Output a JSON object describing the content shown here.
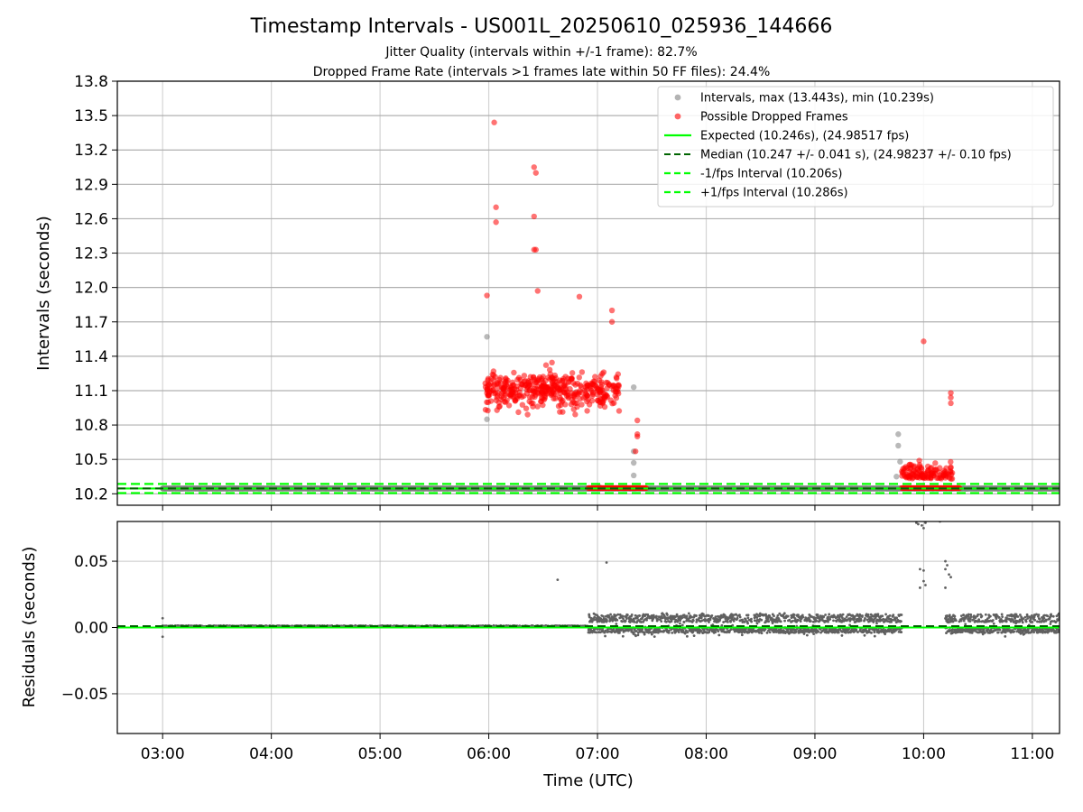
{
  "figure": {
    "title": "Timestamp Intervals - US001L_20250610_025936_144666",
    "subtitle1": "Jitter Quality (intervals within +/-1 frame): 82.7%",
    "subtitle2": "Dropped Frame Rate (intervals >1 frames late within 50 FF files): 24.4%"
  },
  "colors": {
    "intervals": "#808080",
    "dropped": "#ff0000",
    "expected": "#00ff00",
    "median": "#006400",
    "fps_band": "#00ff00",
    "residuals": "#606060",
    "grid": "#b0b0b0"
  },
  "chart_data": [
    {
      "type": "scatter",
      "ylabel": "Intervals (seconds)",
      "xlim": [
        "02:35",
        "11:15"
      ],
      "ylim": [
        10.1,
        13.8
      ],
      "yticks": [
        "10.2",
        "10.5",
        "10.8",
        "11.1",
        "11.4",
        "11.7",
        "12.0",
        "12.3",
        "12.6",
        "12.9",
        "13.2",
        "13.5",
        "13.8"
      ],
      "grid": true,
      "legend_placement": "top-right",
      "legend": [
        "Intervals, max (13.443s), min (10.239s)",
        "Possible Dropped Frames",
        "Expected (10.246s), (24.98517 fps)",
        "Median (10.247 +/- 0.041 s), (24.98237 +/- 0.10 fps)",
        "-1/fps Interval (10.206s)",
        "+1/fps Interval (10.286s)"
      ],
      "lines": {
        "expected": 10.246,
        "median": 10.247,
        "minus_fps": 10.206,
        "plus_fps": 10.286
      },
      "series": [
        {
          "name": "Intervals, max (13.443s), min (10.239s)",
          "baseline": {
            "x_range": [
              "03:00",
              "11:15"
            ],
            "y": 10.246,
            "note": "dense baseline of points along expected interval"
          },
          "points": [
            [
              "05:59",
              11.57
            ],
            [
              "05:59",
              10.85
            ],
            [
              "07:20",
              11.13
            ],
            [
              "07:20",
              10.57
            ],
            [
              "07:20",
              10.47
            ],
            [
              "07:20",
              10.36
            ],
            [
              "09:46",
              10.72
            ],
            [
              "09:46",
              10.62
            ],
            [
              "09:47",
              10.48
            ],
            [
              "09:45",
              10.35
            ],
            [
              "07:01",
              10.26
            ]
          ]
        },
        {
          "name": "Possible Dropped Frames",
          "clusters": [
            {
              "x_range": [
                "05:58",
                "07:12"
              ],
              "y_range": [
                10.27,
                13.45
              ],
              "count": 420
            },
            {
              "x_range": [
                "09:48",
                "10:16"
              ],
              "y_range": [
                10.27,
                11.1
              ],
              "count": 120
            }
          ],
          "points": [
            [
              "06:03",
              13.44
            ],
            [
              "06:25",
              13.05
            ],
            [
              "06:26",
              13.0
            ],
            [
              "06:04",
              12.7
            ],
            [
              "06:04",
              12.57
            ],
            [
              "06:25",
              12.62
            ],
            [
              "06:25",
              12.33
            ],
            [
              "06:26",
              12.33
            ],
            [
              "06:50",
              11.92
            ],
            [
              "05:59",
              11.93
            ],
            [
              "06:27",
              11.97
            ],
            [
              "07:08",
              11.8
            ],
            [
              "07:08",
              11.7
            ],
            [
              "10:00",
              11.53
            ],
            [
              "10:15",
              11.08
            ],
            [
              "10:15",
              11.04
            ],
            [
              "10:15",
              10.99
            ],
            [
              "07:22",
              10.84
            ],
            [
              "07:22",
              10.72
            ],
            [
              "07:22",
              10.7
            ],
            [
              "07:21",
              10.57
            ]
          ],
          "dropped_baseline": {
            "x_range": [
              "06:55",
              "07:27"
            ],
            "y": 10.25
          }
        }
      ]
    },
    {
      "type": "scatter",
      "xlabel": "Time (UTC)",
      "ylabel": "Residuals (seconds)",
      "xlim": [
        "02:35",
        "11:15"
      ],
      "ylim": [
        -0.08,
        0.08
      ],
      "xticks": [
        "03:00",
        "04:00",
        "05:00",
        "06:00",
        "07:00",
        "08:00",
        "09:00",
        "10:00",
        "11:00"
      ],
      "yticks": [
        "−0.05",
        "0.00",
        "0.05"
      ],
      "grid": true,
      "lines": {
        "expected": 0.0,
        "median": 0.001
      },
      "series": [
        {
          "name": "residuals",
          "segments": [
            {
              "x_range": [
                "03:00",
                "06:55"
              ],
              "y_range": [
                0.0005,
                0.0015
              ]
            },
            {
              "x_range": [
                "06:55",
                "09:48"
              ],
              "y_range": [
                -0.007,
                0.011
              ]
            },
            {
              "x_range": [
                "10:12",
                "11:15"
              ],
              "y_range": [
                -0.007,
                0.011
              ]
            }
          ],
          "points": [
            [
              "03:00",
              0.007
            ],
            [
              "03:00",
              -0.007
            ],
            [
              "06:38",
              0.036
            ],
            [
              "07:05",
              0.049
            ],
            [
              "09:56",
              0.079
            ],
            [
              "09:57",
              0.078
            ],
            [
              "09:59",
              0.077
            ],
            [
              "10:01",
              0.079
            ],
            [
              "10:00",
              0.075
            ],
            [
              "10:09",
              0.08
            ],
            [
              "09:58",
              0.044
            ],
            [
              "10:00",
              0.043
            ],
            [
              "10:00",
              0.035
            ],
            [
              "10:01",
              0.032
            ],
            [
              "10:12",
              0.05
            ],
            [
              "10:13",
              0.047
            ],
            [
              "10:12",
              0.044
            ],
            [
              "10:14",
              0.04
            ],
            [
              "10:15",
              0.038
            ],
            [
              "09:58",
              0.03
            ],
            [
              "10:12",
              0.03
            ]
          ]
        }
      ]
    }
  ]
}
